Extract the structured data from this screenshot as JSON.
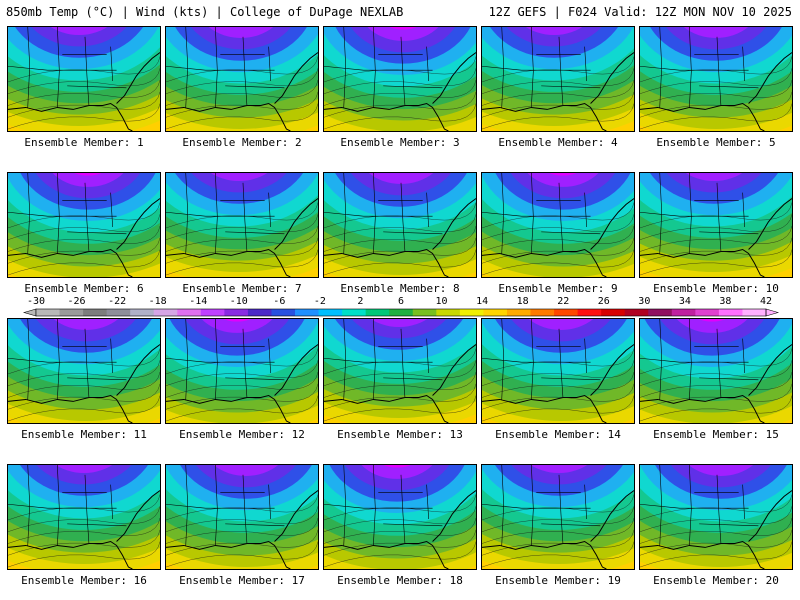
{
  "header": {
    "left": "850mb Temp (°C) | Wind (kts) | College of DuPage NEXLAB",
    "right": "12Z GEFS | F024 Valid: 12Z MON NOV 10 2025"
  },
  "panels": [
    {
      "caption": "Ensemble Member: 1"
    },
    {
      "caption": "Ensemble Member: 2"
    },
    {
      "caption": "Ensemble Member: 3"
    },
    {
      "caption": "Ensemble Member: 4"
    },
    {
      "caption": "Ensemble Member: 5"
    },
    {
      "caption": "Ensemble Member: 6"
    },
    {
      "caption": "Ensemble Member: 7"
    },
    {
      "caption": "Ensemble Member: 8"
    },
    {
      "caption": "Ensemble Member: 9"
    },
    {
      "caption": "Ensemble Member: 10"
    },
    {
      "caption": "Ensemble Member: 11"
    },
    {
      "caption": "Ensemble Member: 12"
    },
    {
      "caption": "Ensemble Member: 13"
    },
    {
      "caption": "Ensemble Member: 14"
    },
    {
      "caption": "Ensemble Member: 15"
    },
    {
      "caption": "Ensemble Member: 16"
    },
    {
      "caption": "Ensemble Member: 17"
    },
    {
      "caption": "Ensemble Member: 18"
    },
    {
      "caption": "Ensemble Member: 19"
    },
    {
      "caption": "Ensemble Member: 20"
    }
  ],
  "colorbar": {
    "ticks": [
      "-30",
      "-26",
      "-22",
      "-18",
      "-14",
      "-10",
      "-6",
      "-2",
      "2",
      "6",
      "10",
      "14",
      "18",
      "22",
      "26",
      "30",
      "34",
      "38",
      "42"
    ],
    "colors": [
      "#b8b8b8",
      "#9a9a9a",
      "#7d7d7d",
      "#8e8e9a",
      "#b0b0c8",
      "#d6a6e6",
      "#e070f0",
      "#c040ff",
      "#8a2be2",
      "#4b28c8",
      "#2850e0",
      "#1e90ff",
      "#00bfff",
      "#00e0c8",
      "#00c878",
      "#20b040",
      "#78c020",
      "#c8d800",
      "#f0f000",
      "#ffd400",
      "#ffaa00",
      "#ff7a00",
      "#ff4800",
      "#ff1010",
      "#d80000",
      "#b00020",
      "#901060",
      "#c020a0",
      "#e040d0",
      "#ff70ff",
      "#ffb0ff"
    ]
  },
  "map_palette": [
    "#e000ff",
    "#a020ff",
    "#6030e8",
    "#2f50e8",
    "#1fb0f0",
    "#10d8d0",
    "#14c890",
    "#30b050",
    "#70b828",
    "#b8c800",
    "#ead800",
    "#ffd000"
  ]
}
